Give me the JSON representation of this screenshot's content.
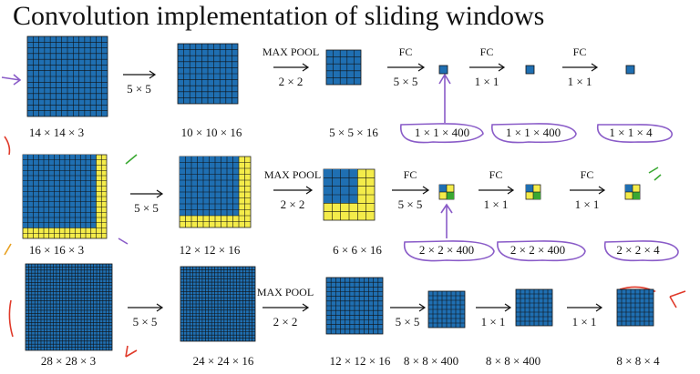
{
  "title": "Convolution implementation of sliding windows",
  "rows": [
    {
      "dims": [
        "14 × 14 × 3",
        "10 × 10 × 16",
        "5 × 5 × 16",
        "1 × 1 × 400",
        "1 × 1 × 400",
        "1 × 1 × 4"
      ],
      "ops": [
        {
          "size": "5 × 5"
        },
        {
          "name": "MAX POOL",
          "size": "2 × 2"
        },
        {
          "name": "FC",
          "size": "5 × 5"
        },
        {
          "name": "FC",
          "size": "1 × 1"
        },
        {
          "name": "FC",
          "size": "1 × 1"
        }
      ]
    },
    {
      "dims": [
        "16 × 16 × 3",
        "12 × 12 × 16",
        "6 × 6 × 16",
        "2 × 2 × 400",
        "2 × 2 × 400",
        "2 × 2 × 4"
      ],
      "ops": [
        {
          "size": "5 × 5"
        },
        {
          "name": "MAX POOL",
          "size": "2 × 2"
        },
        {
          "name": "FC",
          "size": "5 × 5"
        },
        {
          "name": "FC",
          "size": "1 × 1"
        },
        {
          "name": "FC",
          "size": "1 × 1"
        }
      ]
    },
    {
      "dims": [
        "28 × 28 × 3",
        "24 × 24 × 16",
        "12 × 12 × 16",
        "8 × 8 × 400",
        "8 × 8 × 400",
        "8 × 8 × 4"
      ],
      "ops": [
        {
          "size": "5 × 5"
        },
        {
          "name": "MAX POOL",
          "size": "2 × 2"
        },
        {
          "size": "5 × 5"
        },
        {
          "size": "1 × 1"
        },
        {
          "size": "1 × 1"
        }
      ]
    }
  ]
}
